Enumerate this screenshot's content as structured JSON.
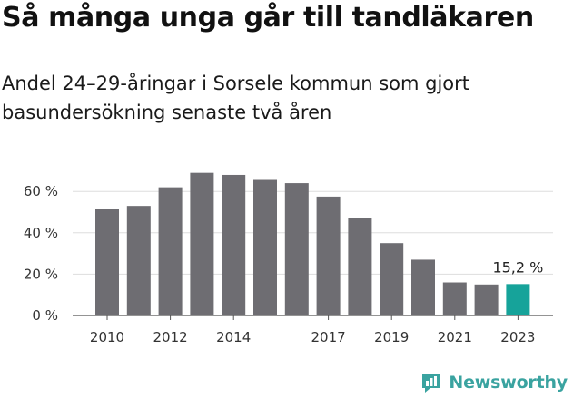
{
  "header": {
    "title": "Så många unga går till tandläkaren",
    "subtitle": "Andel 24–29-åringar i Sorsele kommun som gjort basundersökning senaste två åren"
  },
  "brand": {
    "name": "Newsworthy",
    "icon": "newsworthy-logo-icon",
    "color": "#3aa3a0"
  },
  "colors": {
    "bar": "#6e6d72",
    "highlight": "#16a39a",
    "grid": "#dddddd"
  },
  "chart_data": {
    "type": "bar",
    "title": "Så många unga går till tandläkaren",
    "subtitle": "Andel 24–29-åringar i Sorsele kommun som gjort basundersökning senaste två åren",
    "xlabel": "",
    "ylabel": "",
    "categories": [
      "2010",
      "2011",
      "2012",
      "2013",
      "2014",
      "2015",
      "2016",
      "2017",
      "2018",
      "2019",
      "2020",
      "2021",
      "2022",
      "2023"
    ],
    "values": [
      51.5,
      53,
      62,
      69,
      68,
      66,
      64,
      57.5,
      47,
      35,
      27,
      16,
      15,
      15.2
    ],
    "ylim": [
      0,
      70
    ],
    "yticks": [
      0,
      20,
      40,
      60
    ],
    "ytick_labels": [
      "0 %",
      "20 %",
      "40 %",
      "60 %"
    ],
    "xtick_labels": [
      "2010",
      "2012",
      "2014",
      "2017",
      "2019",
      "2021",
      "2023"
    ],
    "highlight_category": "2023",
    "annotation": "15,2 %",
    "grid": true,
    "legend": "none"
  }
}
